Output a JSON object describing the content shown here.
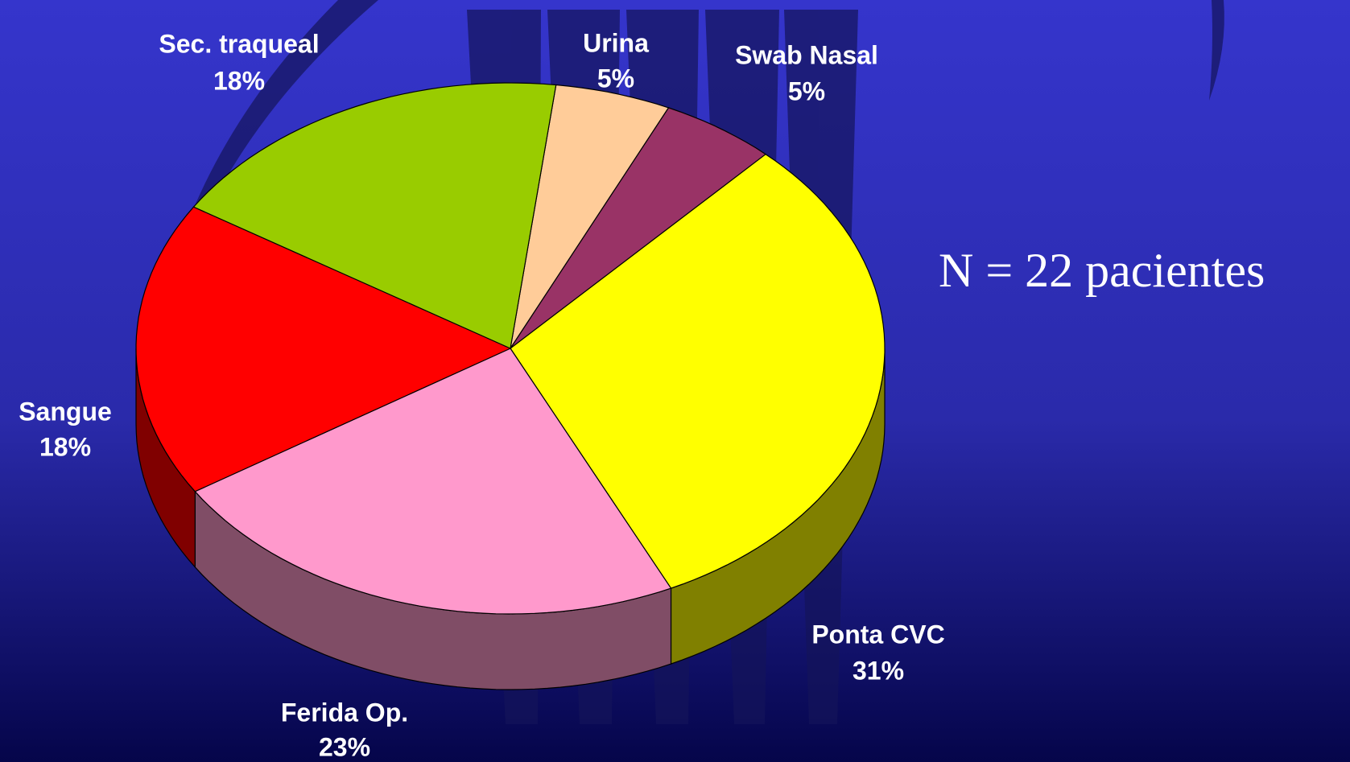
{
  "chart_data": {
    "type": "pie",
    "annotation": "N = 22 pacientes",
    "categories": [
      "Urina",
      "Swab Nasal",
      "Ponta CVC",
      "Ferida Op.",
      "Sangue",
      "Sec. traqueal"
    ],
    "values": [
      5,
      5,
      31,
      23,
      18,
      18
    ],
    "value_labels": [
      "5%",
      "5%",
      "31%",
      "23%",
      "18%",
      "18%"
    ],
    "colors": [
      "#ffcc99",
      "#993366",
      "#ffff00",
      "#ff99cc",
      "#ff0000",
      "#99cc00"
    ]
  }
}
